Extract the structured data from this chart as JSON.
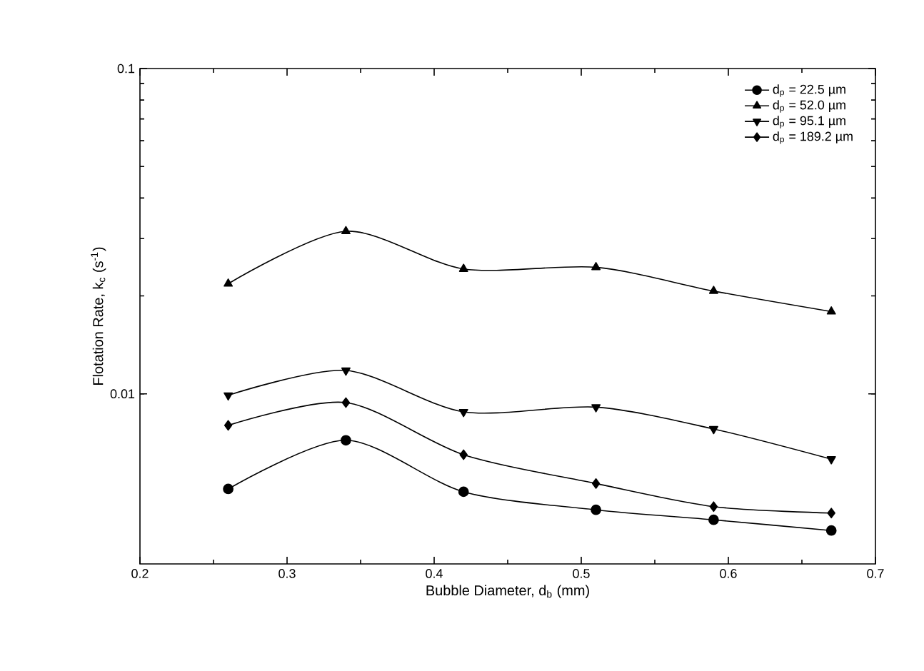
{
  "chart_data": {
    "type": "line",
    "xlabel": "Bubble Diameter, d$_{b}$ (mm)",
    "ylabel": "Flotation Rate, k$_{c}$ (s$^{-1}$)",
    "x": [
      0.26,
      0.34,
      0.42,
      0.51,
      0.59,
      0.67
    ],
    "series": [
      {
        "name": "d$_{p}$ = 22.5 µm",
        "color": "#000000",
        "marker": "circle",
        "values": [
          0.0051,
          0.0072,
          0.005,
          0.0044,
          0.0041,
          0.0038
        ]
      },
      {
        "name": "d$_{p}$ = 52.0 µm",
        "color": "#000000",
        "marker": "triangle",
        "values": [
          0.0218,
          0.0316,
          0.0242,
          0.0245,
          0.0207,
          0.0179
        ]
      },
      {
        "name": "d$_{p}$ = 95.1 µm",
        "color": "#000000",
        "marker": "triangle-down",
        "values": [
          0.0099,
          0.0118,
          0.0088,
          0.0091,
          0.0078,
          0.0063
        ]
      },
      {
        "name": "d$_{p}$ = 189.2 µm",
        "color": "#000000",
        "marker": "diamond",
        "values": [
          0.008,
          0.0094,
          0.0065,
          0.0053,
          0.0045,
          0.0043
        ]
      }
    ],
    "xlim": [
      0.2,
      0.7
    ],
    "xticks": [
      0.2,
      0.3,
      0.4,
      0.5,
      0.6,
      0.7
    ],
    "ylim": [
      0.003,
      0.1
    ],
    "yticks": [
      0.01,
      0.1
    ],
    "log": "y",
    "grid": false,
    "legend": "top right",
    "line_style": "solid"
  }
}
